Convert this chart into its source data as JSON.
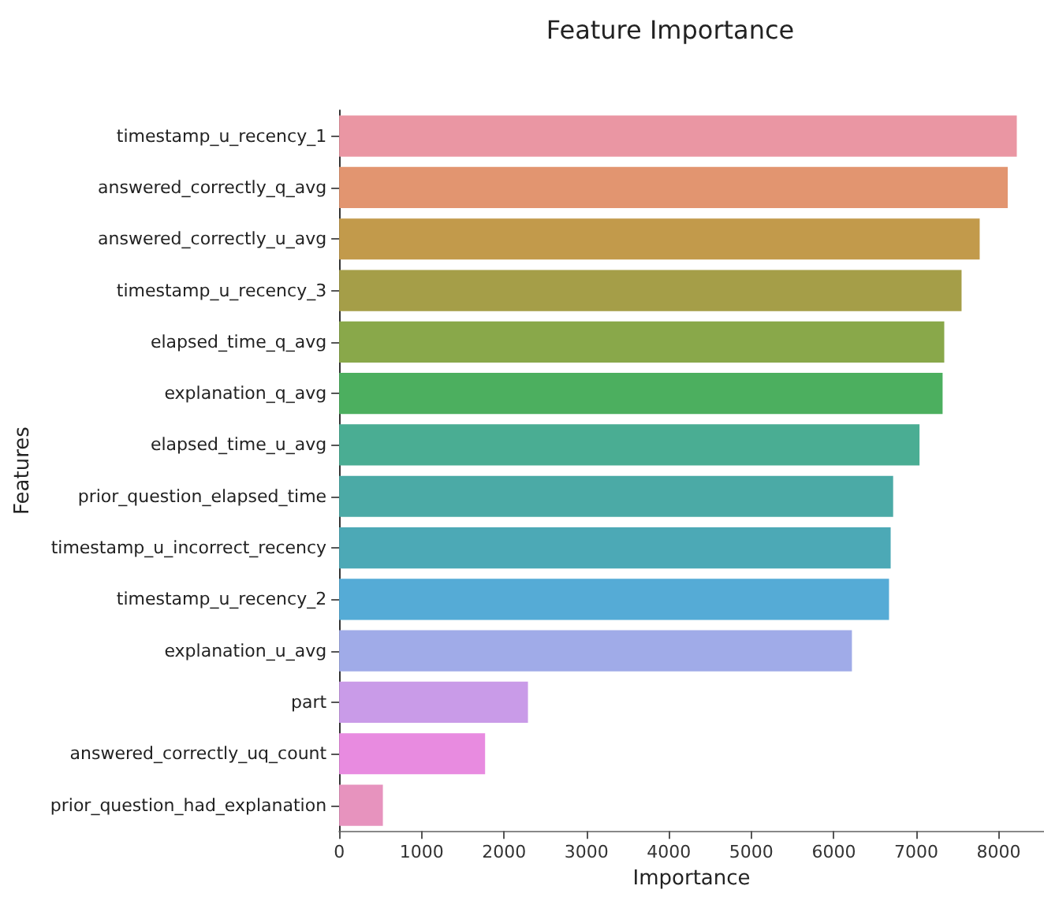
{
  "chart_data": {
    "type": "bar",
    "orientation": "horizontal",
    "title": "Feature Importance",
    "xlabel": "Importance",
    "ylabel": "Features",
    "categories": [
      "timestamp_u_recency_1",
      "answered_correctly_q_avg",
      "answered_correctly_u_avg",
      "timestamp_u_recency_3",
      "elapsed_time_q_avg",
      "explanation_q_avg",
      "elapsed_time_u_avg",
      "prior_question_elapsed_time",
      "timestamp_u_incorrect_recency",
      "timestamp_u_recency_2",
      "explanation_u_avg",
      "part",
      "answered_correctly_uq_count",
      "prior_question_had_explanation"
    ],
    "values": [
      8220,
      8110,
      7770,
      7550,
      7340,
      7320,
      7040,
      6720,
      6690,
      6670,
      6220,
      2290,
      1770,
      530
    ],
    "colors": [
      "#ea96a3",
      "#e29570",
      "#c29a4b",
      "#a59e48",
      "#89a84a",
      "#4caf5f",
      "#4aad93",
      "#4baaa6",
      "#4ca9b6",
      "#55abd6",
      "#a0abe8",
      "#c99be8",
      "#e88be0",
      "#e793be"
    ],
    "xlim": [
      0,
      8550
    ],
    "xticks": [
      0,
      1000,
      2000,
      3000,
      4000,
      5000,
      6000,
      7000,
      8000
    ],
    "grid": false
  }
}
